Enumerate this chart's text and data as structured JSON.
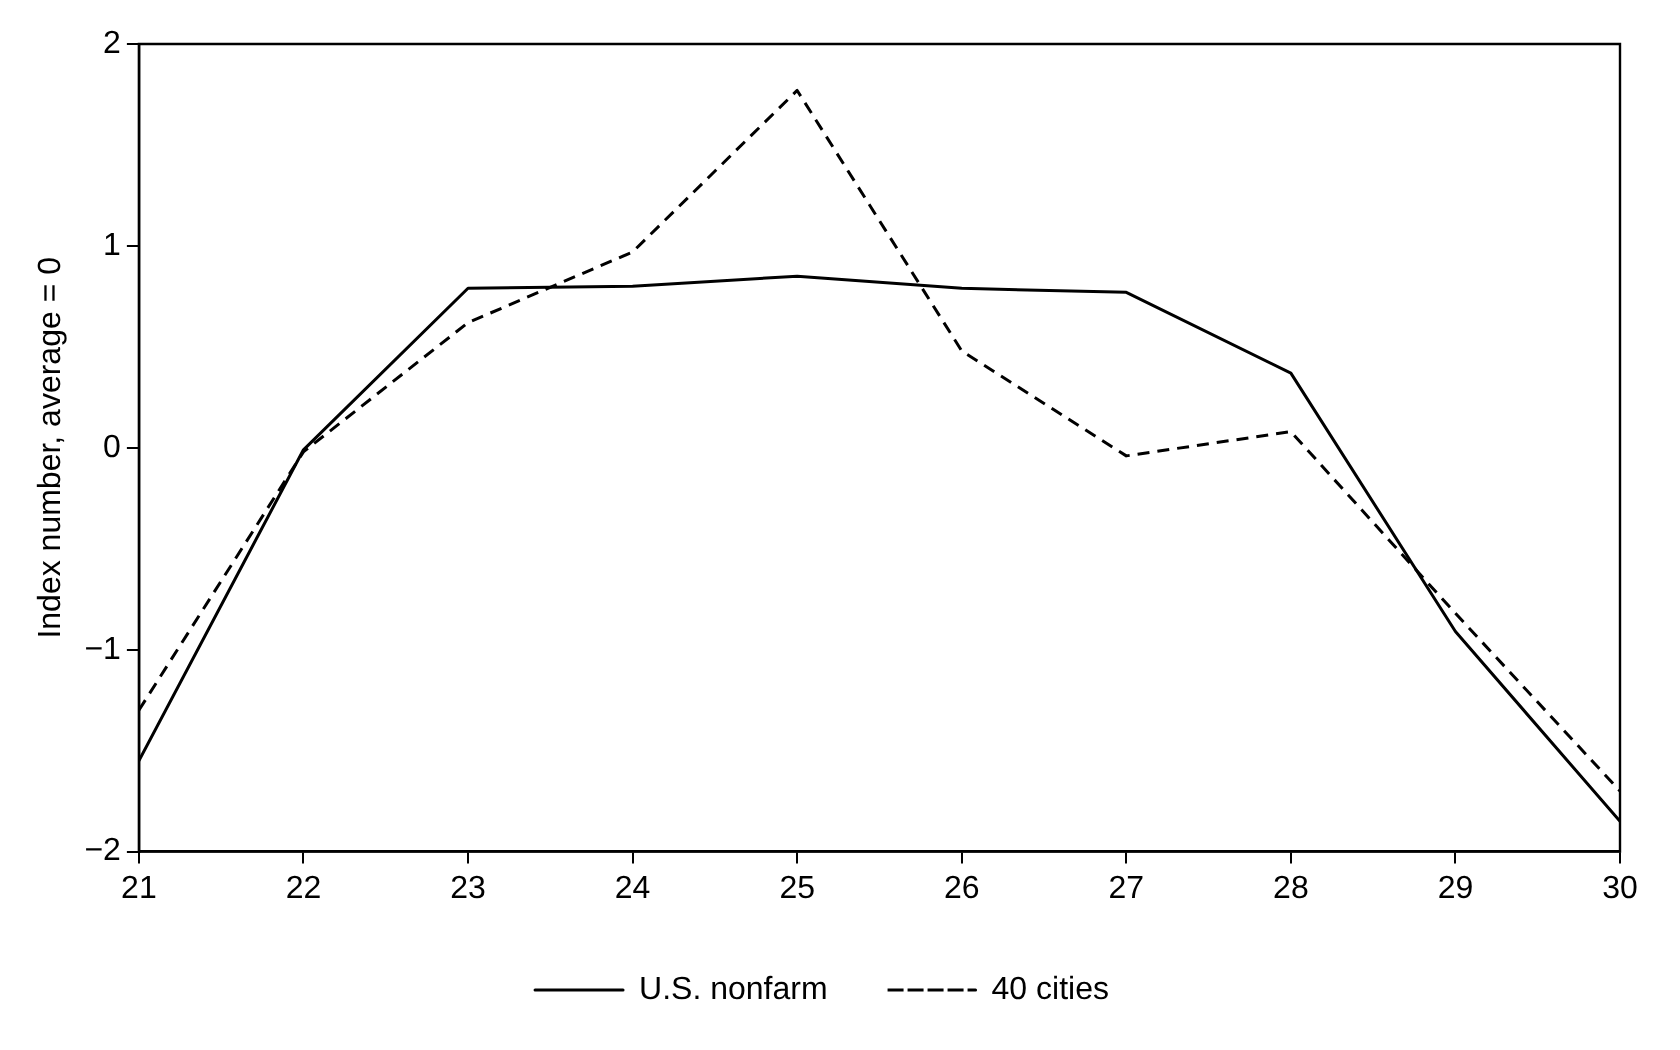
{
  "chart_data": {
    "type": "line",
    "ylabel": "Index number, average = 0",
    "x": [
      21,
      22,
      23,
      24,
      25,
      26,
      27,
      28,
      29,
      30
    ],
    "xlim": [
      21,
      30
    ],
    "xticks": [
      21,
      22,
      23,
      24,
      25,
      26,
      27,
      28,
      29,
      30
    ],
    "ylim": [
      -2,
      2
    ],
    "yticks": [
      {
        "value": -2,
        "label": "−2"
      },
      {
        "value": -1,
        "label": "−1"
      },
      0,
      1,
      2
    ],
    "grid": false,
    "legend": "bottom",
    "marker": "none",
    "series": [
      {
        "name": "U.S. nonfarm",
        "color": "#000000",
        "line_style": "solid",
        "values": [
          -1.55,
          -0.01,
          0.79,
          0.8,
          0.85,
          0.79,
          0.77,
          0.37,
          -0.91,
          -1.85
        ]
      },
      {
        "name": "40 cities",
        "color": "#000000",
        "line_style": "dashed",
        "values": [
          -1.3,
          -0.02,
          0.62,
          0.97,
          1.77,
          0.48,
          -0.04,
          0.08,
          -0.82,
          -1.7
        ]
      }
    ]
  }
}
